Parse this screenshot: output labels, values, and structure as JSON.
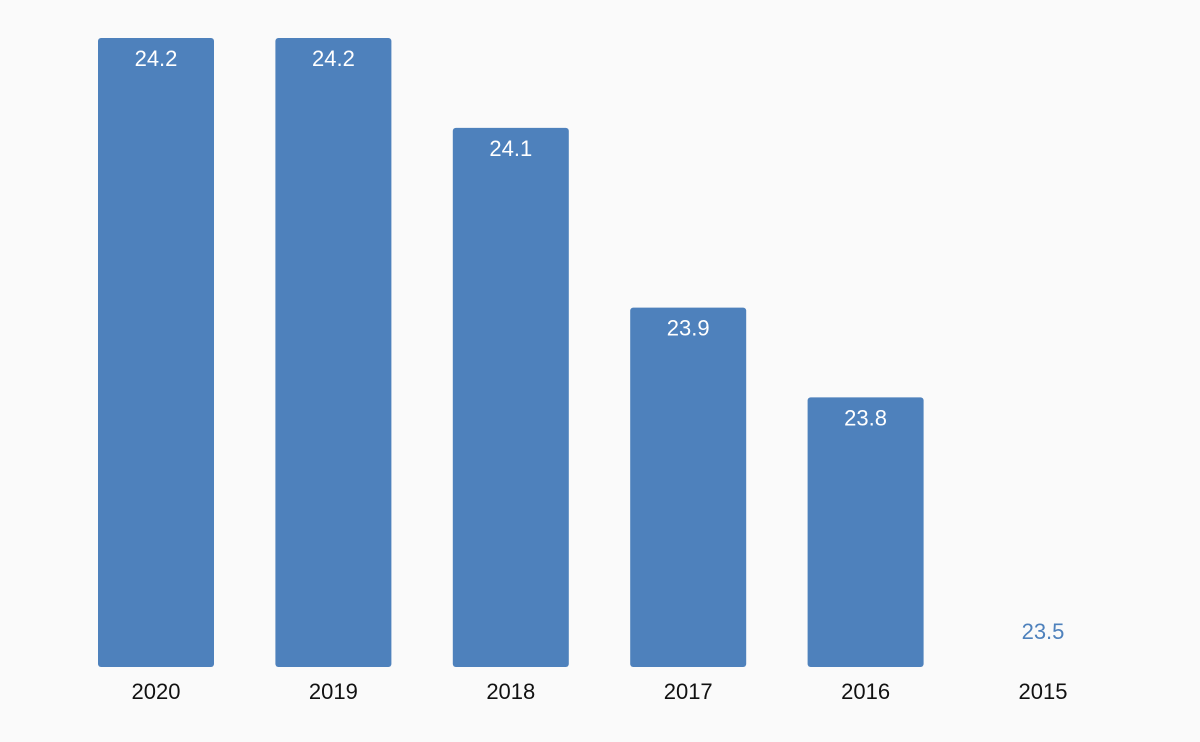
{
  "chart_data": {
    "type": "bar",
    "title": "",
    "xlabel": "",
    "ylabel": "",
    "categories": [
      "2020",
      "2019",
      "2018",
      "2017",
      "2016",
      "2015"
    ],
    "values": [
      24.2,
      24.2,
      24.1,
      23.9,
      23.8,
      23.5
    ],
    "ylim": [
      23.5,
      24.2
    ],
    "grid": false,
    "legend": "none",
    "colors": {
      "bar": "#4e81bc",
      "label_inside": "#ffffff",
      "label_outside": "#4e81bc",
      "tick": "#111111",
      "background": "#fafafa"
    }
  }
}
